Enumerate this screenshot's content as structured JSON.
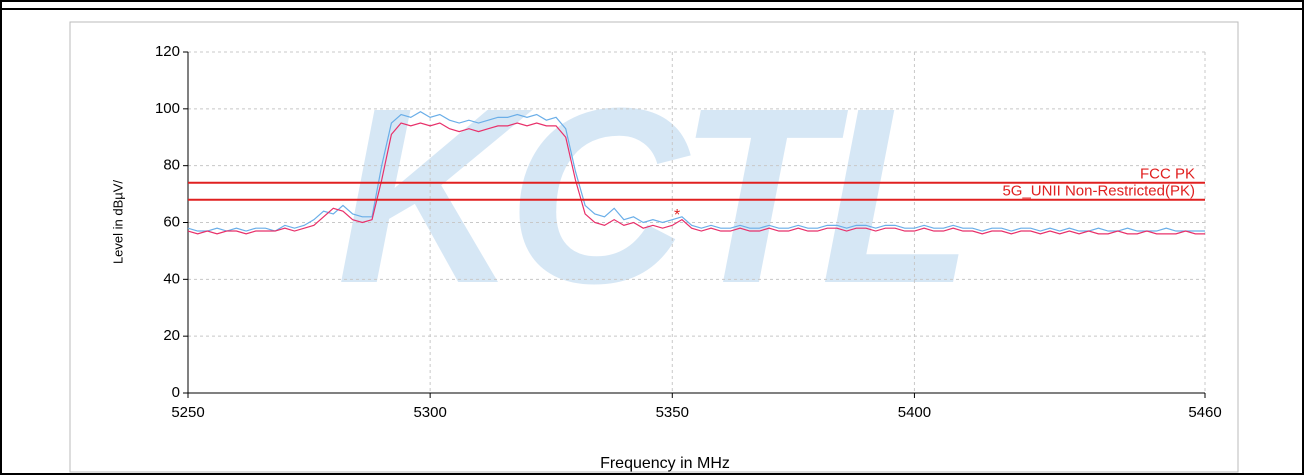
{
  "chart_data": {
    "type": "line",
    "watermark": "KCTL",
    "xlabel": "Frequency in MHz",
    "ylabel": "Level in dBµV/",
    "xlim": [
      5250,
      5460
    ],
    "xticks": [
      5250,
      5300,
      5350,
      5400,
      5460
    ],
    "ylim": [
      0,
      120
    ],
    "yticks": [
      0,
      20,
      40,
      60,
      80,
      100,
      120
    ],
    "grid": true,
    "x": [
      5250,
      5252,
      5254,
      5256,
      5258,
      5260,
      5262,
      5264,
      5266,
      5268,
      5270,
      5272,
      5274,
      5276,
      5278,
      5280,
      5282,
      5284,
      5286,
      5288,
      5290,
      5292,
      5294,
      5296,
      5298,
      5300,
      5302,
      5304,
      5306,
      5308,
      5310,
      5312,
      5314,
      5316,
      5318,
      5320,
      5322,
      5324,
      5326,
      5328,
      5330,
      5332,
      5334,
      5336,
      5338,
      5340,
      5342,
      5344,
      5346,
      5348,
      5350,
      5352,
      5354,
      5356,
      5358,
      5360,
      5362,
      5364,
      5366,
      5368,
      5370,
      5372,
      5374,
      5376,
      5378,
      5380,
      5382,
      5384,
      5386,
      5388,
      5390,
      5392,
      5394,
      5396,
      5398,
      5400,
      5402,
      5404,
      5406,
      5408,
      5410,
      5412,
      5414,
      5416,
      5418,
      5420,
      5422,
      5424,
      5426,
      5428,
      5430,
      5432,
      5434,
      5436,
      5438,
      5440,
      5442,
      5444,
      5446,
      5448,
      5450,
      5452,
      5454,
      5456,
      5458,
      5460
    ],
    "series": [
      {
        "color": "#6aaee8",
        "values": [
          58,
          57,
          57,
          58,
          57,
          58,
          57,
          58,
          58,
          57,
          59,
          58,
          59,
          61,
          64,
          63,
          66,
          63,
          62,
          62,
          80,
          95,
          98,
          97,
          99,
          97,
          98,
          96,
          95,
          96,
          95,
          96,
          97,
          97,
          98,
          97,
          98,
          96,
          97,
          93,
          78,
          66,
          63,
          62,
          65,
          61,
          62,
          60,
          61,
          60,
          61,
          62,
          59,
          58,
          59,
          58,
          58,
          59,
          58,
          58,
          59,
          58,
          58,
          59,
          58,
          58,
          59,
          59,
          58,
          59,
          59,
          58,
          59,
          59,
          58,
          58,
          59,
          58,
          58,
          59,
          58,
          58,
          57,
          58,
          58,
          57,
          58,
          58,
          57,
          58,
          57,
          58,
          57,
          57,
          58,
          57,
          57,
          58,
          57,
          57,
          57,
          58,
          57,
          57,
          57,
          57
        ]
      },
      {
        "color": "#e8306a",
        "values": [
          57,
          56,
          57,
          56,
          57,
          57,
          56,
          57,
          57,
          57,
          58,
          57,
          58,
          59,
          62,
          65,
          64,
          61,
          60,
          61,
          75,
          91,
          95,
          94,
          95,
          94,
          95,
          93,
          92,
          93,
          92,
          93,
          94,
          94,
          95,
          94,
          95,
          94,
          94,
          90,
          75,
          63,
          60,
          59,
          61,
          59,
          60,
          58,
          59,
          58,
          59,
          61,
          58,
          57,
          58,
          57,
          57,
          58,
          57,
          57,
          58,
          57,
          57,
          58,
          57,
          57,
          58,
          58,
          57,
          58,
          58,
          57,
          58,
          58,
          57,
          57,
          58,
          57,
          57,
          58,
          57,
          57,
          56,
          57,
          57,
          56,
          57,
          57,
          56,
          57,
          56,
          57,
          56,
          57,
          56,
          56,
          57,
          56,
          56,
          57,
          56,
          56,
          56,
          57,
          56,
          56
        ]
      }
    ],
    "limits": [
      {
        "name": "FCC PK",
        "value": 74,
        "color": "#e02020"
      },
      {
        "name": "5G_UNII Non-Restricted(PK)",
        "value": 68,
        "color": "#e02020"
      }
    ],
    "marker": {
      "x": 5351,
      "y": 63.5,
      "color": "#e02020"
    }
  }
}
